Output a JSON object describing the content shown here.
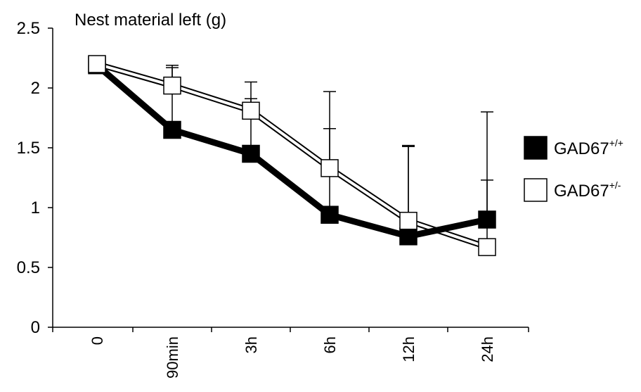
{
  "chart_data": {
    "type": "line",
    "title": "",
    "ylabel": "Nest material  left (g)",
    "xlabel": "",
    "categories": [
      "0",
      "90min",
      "3h",
      "6h",
      "12h",
      "24h"
    ],
    "ylim": [
      0,
      2.5
    ],
    "yticks": [
      0,
      0.5,
      1,
      1.5,
      2,
      2.5
    ],
    "ytick_labels": [
      "0",
      "0.5",
      "1",
      "1.5",
      "2",
      "2.5"
    ],
    "grid": false,
    "legend_position": "right",
    "series": [
      {
        "name": "GAD67",
        "name_sup": "+/+",
        "marker": "filled-square",
        "color": "#000000",
        "values": [
          2.19,
          1.65,
          1.45,
          0.94,
          0.76,
          0.9
        ],
        "error_upper": [
          null,
          2.17,
          1.91,
          1.66,
          1.51,
          1.23
        ]
      },
      {
        "name": "GAD67",
        "name_sup": "+/-",
        "marker": "open-square",
        "color": "#000000",
        "values": [
          2.2,
          2.02,
          1.81,
          1.33,
          0.89,
          0.67
        ],
        "error_upper": [
          null,
          2.19,
          2.05,
          1.97,
          1.52,
          1.8
        ]
      }
    ]
  }
}
